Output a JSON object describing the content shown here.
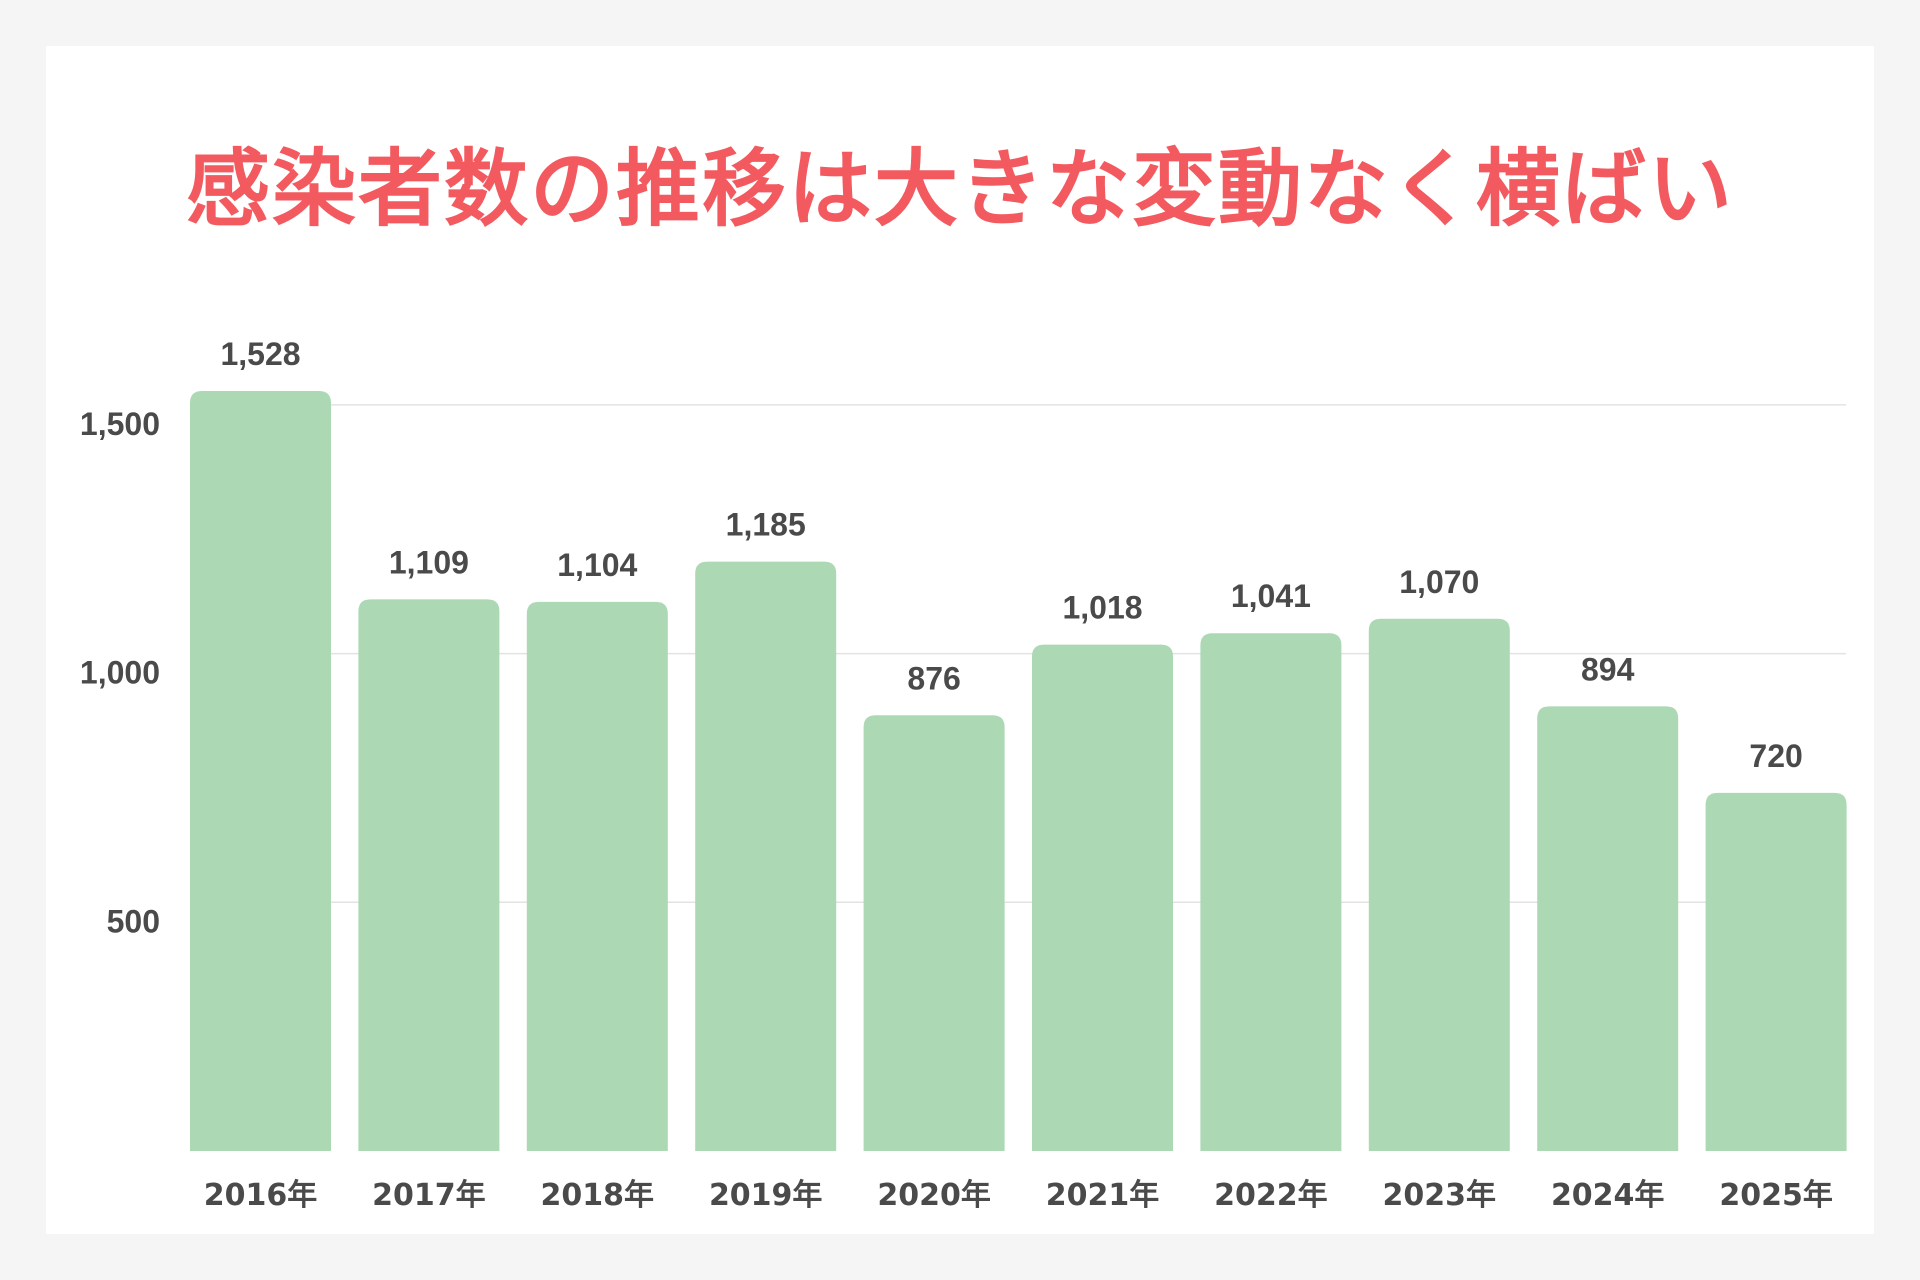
{
  "colors": {
    "background": "#f5f5f5",
    "card": "#ffffff",
    "title": "#f25a5f",
    "bar": "#acd8b4",
    "grid": "#e3e3e3",
    "text": "#4a4a4a"
  },
  "chart_data": {
    "type": "bar",
    "title": "感染者数の推移は大きな変動なく横ばい",
    "categories": [
      "2016年",
      "2017年",
      "2018年",
      "2019年",
      "2020年",
      "2021年",
      "2022年",
      "2023年",
      "2024年",
      "2025年"
    ],
    "values": [
      1528,
      1109,
      1104,
      1185,
      876,
      1018,
      1041,
      1070,
      894,
      720
    ],
    "value_labels": [
      "1,528",
      "1,109",
      "1,104",
      "1,185",
      "876",
      "1,018",
      "1,041",
      "1,070",
      "894",
      "720"
    ],
    "yticks": [
      500,
      1000,
      1500
    ],
    "ytick_labels": [
      "500",
      "1,000",
      "1,500"
    ],
    "ylim": [
      0,
      1530
    ],
    "grid": true,
    "xlabel": "",
    "ylabel": ""
  }
}
